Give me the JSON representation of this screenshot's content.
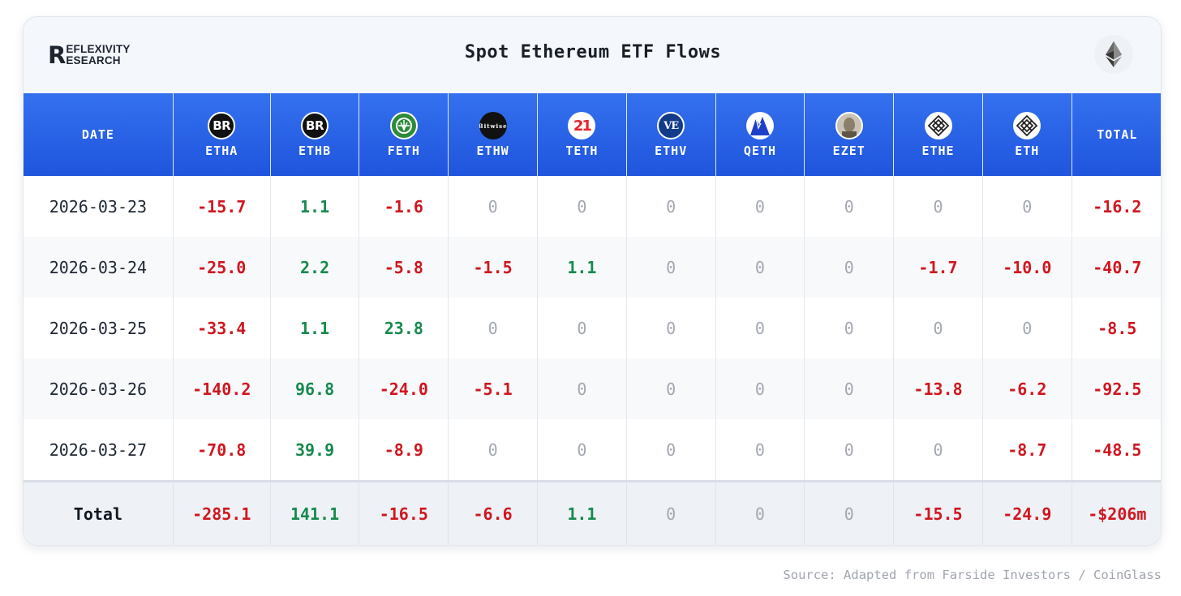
{
  "header": {
    "logo_top": "EFLEXIVITY",
    "logo_bottom": "ESEARCH",
    "logo_mark": "R",
    "title": "Spot Ethereum ETF Flows"
  },
  "chart_data": {
    "type": "table",
    "title": "Spot Ethereum ETF Flows",
    "columns": [
      {
        "label": "DATE",
        "icon": null
      },
      {
        "label": "ETHA",
        "icon": "blackrock-icon",
        "icon_text": "BR"
      },
      {
        "label": "ETHB",
        "icon": "blackrock-icon",
        "icon_text": "BR"
      },
      {
        "label": "FETH",
        "icon": "fidelity-icon"
      },
      {
        "label": "ETHW",
        "icon": "bitwise-icon",
        "icon_text": "Bitwise"
      },
      {
        "label": "TETH",
        "icon": "21shares-icon",
        "icon_text": "21"
      },
      {
        "label": "ETHV",
        "icon": "vaneck-icon",
        "icon_text": "VE"
      },
      {
        "label": "QETH",
        "icon": "invesco-icon"
      },
      {
        "label": "EZET",
        "icon": "franklin-icon"
      },
      {
        "label": "ETHE",
        "icon": "grayscale-icon"
      },
      {
        "label": "ETH",
        "icon": "grayscale-icon"
      },
      {
        "label": "TOTAL",
        "icon": null
      }
    ],
    "rows": [
      {
        "date": "2026-03-23",
        "values": [
          "-15.7",
          "1.1",
          "-1.6",
          "0",
          "0",
          "0",
          "0",
          "0",
          "0",
          "0",
          "-16.2"
        ]
      },
      {
        "date": "2026-03-24",
        "values": [
          "-25.0",
          "2.2",
          "-5.8",
          "-1.5",
          "1.1",
          "0",
          "0",
          "0",
          "-1.7",
          "-10.0",
          "-40.7"
        ]
      },
      {
        "date": "2026-03-25",
        "values": [
          "-33.4",
          "1.1",
          "23.8",
          "0",
          "0",
          "0",
          "0",
          "0",
          "0",
          "0",
          "-8.5"
        ]
      },
      {
        "date": "2026-03-26",
        "values": [
          "-140.2",
          "96.8",
          "-24.0",
          "-5.1",
          "0",
          "0",
          "0",
          "0",
          "-13.8",
          "-6.2",
          "-92.5"
        ]
      },
      {
        "date": "2026-03-27",
        "values": [
          "-70.8",
          "39.9",
          "-8.9",
          "0",
          "0",
          "0",
          "0",
          "0",
          "0",
          "-8.7",
          "-48.5"
        ]
      }
    ],
    "totals": {
      "label": "Total",
      "values": [
        "-285.1",
        "141.1",
        "-16.5",
        "-6.6",
        "1.1",
        "0",
        "0",
        "0",
        "-15.5",
        "-24.9",
        "-$206m"
      ]
    },
    "colors": {
      "negative": "#d0161f",
      "positive": "#158a4e",
      "zero": "#a3a8b0",
      "header": "#2a63e8"
    }
  },
  "footer": {
    "source": "Source: Adapted from Farside Investors / CoinGlass"
  }
}
